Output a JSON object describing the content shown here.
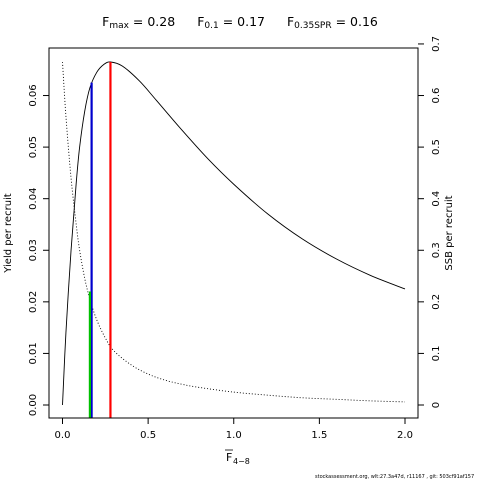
{
  "title": {
    "items": [
      {
        "sym": "F",
        "sub": "max",
        "value": "0.28"
      },
      {
        "sym": "F",
        "sub": "0.1",
        "value": "0.17"
      },
      {
        "sym": "F",
        "sub": "0.35SPR",
        "value": "0.16"
      }
    ]
  },
  "footer": "stockassessment.org, wlt:27.3a47d, r11167 , git: 503cf91af157",
  "chart_data": {
    "type": "line",
    "xlabel": "F",
    "xlabel_sub": "4−8",
    "ylabel_left": "Yield per recruit",
    "ylabel_right": "SSB per recruit",
    "xlim": [
      0,
      2.0
    ],
    "ylim_left": [
      0,
      0.0665
    ],
    "ylim_right": [
      0,
      0.665
    ],
    "xticks": [
      0.0,
      0.5,
      1.0,
      1.5,
      2.0
    ],
    "xtick_labels": [
      "0.0",
      "0.5",
      "1.0",
      "1.5",
      "2.0"
    ],
    "yticks_left": [
      0.0,
      0.01,
      0.02,
      0.03,
      0.04,
      0.05,
      0.06
    ],
    "ytick_labels_left": [
      "0.00",
      "0.01",
      "0.02",
      "0.03",
      "0.04",
      "0.05",
      "0.06"
    ],
    "yticks_right": [
      0,
      0.1,
      0.2,
      0.3,
      0.4,
      0.5,
      0.6,
      0.7
    ],
    "ytick_labels_right": [
      "0",
      "0.1",
      "0.2",
      "0.3",
      "0.4",
      "0.5",
      "0.6",
      "0.7"
    ],
    "grid": false,
    "series": [
      {
        "style": "solid",
        "axis": "left",
        "color": "#000000",
        "x": [
          0,
          0.02,
          0.05,
          0.08,
          0.1,
          0.13,
          0.16,
          0.2,
          0.24,
          0.28,
          0.35,
          0.45,
          0.55,
          0.7,
          0.85,
          1.0,
          1.2,
          1.4,
          1.6,
          1.8,
          2.0
        ],
        "y": [
          0,
          0.014,
          0.03,
          0.043,
          0.05,
          0.057,
          0.0615,
          0.0645,
          0.066,
          0.0665,
          0.0657,
          0.0628,
          0.059,
          0.0532,
          0.0477,
          0.0428,
          0.037,
          0.0322,
          0.0283,
          0.0251,
          0.0225
        ]
      },
      {
        "style": "dotted",
        "axis": "right",
        "color": "#000000",
        "x": [
          0,
          0.02,
          0.05,
          0.08,
          0.1,
          0.13,
          0.16,
          0.2,
          0.25,
          0.3,
          0.4,
          0.5,
          0.6,
          0.7,
          0.8,
          1.0,
          1.2,
          1.4,
          1.6,
          1.8,
          2.0
        ],
        "y": [
          0.665,
          0.56,
          0.44,
          0.35,
          0.3,
          0.245,
          0.205,
          0.165,
          0.13,
          0.105,
          0.078,
          0.06,
          0.048,
          0.04,
          0.034,
          0.025,
          0.019,
          0.014,
          0.011,
          0.008,
          0.006
        ]
      }
    ],
    "vlines": [
      {
        "x": 0.28,
        "y": 0.0665,
        "color": "#ff0000"
      },
      {
        "x": 0.17,
        "y": 0.0625,
        "color": "#0000cd"
      },
      {
        "x": 0.16,
        "y": 0.022,
        "color": "#00c000"
      }
    ]
  }
}
